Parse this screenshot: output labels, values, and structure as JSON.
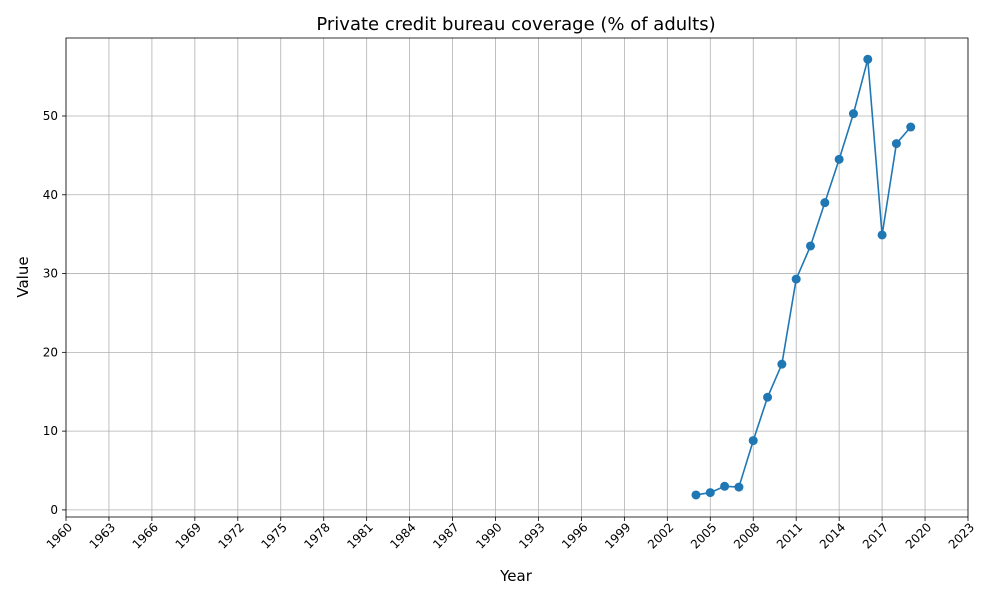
{
  "chart_data": {
    "type": "line",
    "title": "Private credit bureau coverage (% of adults)",
    "xlabel": "Year",
    "ylabel": "Value",
    "xlim": [
      1960,
      2023
    ],
    "ylim": [
      -0.9,
      59.9
    ],
    "x_ticks": [
      1960,
      1963,
      1966,
      1969,
      1972,
      1975,
      1978,
      1981,
      1984,
      1987,
      1990,
      1993,
      1996,
      1999,
      2002,
      2005,
      2008,
      2011,
      2014,
      2017,
      2020,
      2023
    ],
    "y_ticks": [
      0,
      10,
      20,
      30,
      40,
      50
    ],
    "grid": true,
    "color": "#1f77b4",
    "series": [
      {
        "name": "",
        "x": [
          2004,
          2005,
          2006,
          2007,
          2008,
          2009,
          2010,
          2011,
          2012,
          2013,
          2014,
          2015,
          2016,
          2017,
          2018,
          2019
        ],
        "values": [
          1.9,
          2.2,
          3.0,
          2.9,
          8.8,
          14.3,
          18.5,
          29.3,
          33.5,
          39.0,
          44.5,
          50.3,
          57.2,
          34.9,
          46.5,
          48.6
        ]
      }
    ]
  }
}
